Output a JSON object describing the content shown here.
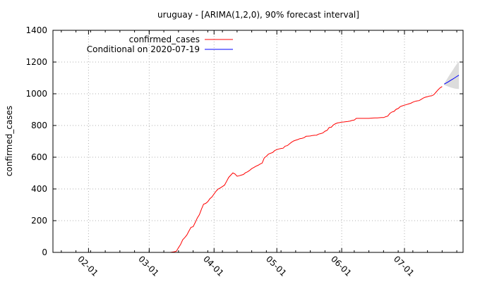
{
  "chart_data": {
    "type": "line",
    "title": "uruguay -  [ARIMA(1,2,0), 90% forecast interval]",
    "xlabel": "",
    "ylabel": "confirmed_cases",
    "ylim": [
      0,
      1400
    ],
    "yticks": [
      0,
      200,
      400,
      600,
      800,
      1000,
      1200,
      1400
    ],
    "xlim": [
      "2020-01-15",
      "2020-07-29"
    ],
    "xticks": [
      {
        "date": "2020-02-01",
        "label": "02-01"
      },
      {
        "date": "2020-03-01",
        "label": "03-01"
      },
      {
        "date": "2020-04-01",
        "label": "04-01"
      },
      {
        "date": "2020-05-01",
        "label": "05-01"
      },
      {
        "date": "2020-06-01",
        "label": "06-01"
      },
      {
        "date": "2020-07-01",
        "label": "07-01"
      }
    ],
    "grid": true,
    "legend_position": "top-left",
    "series": [
      {
        "name": "confirmed_cases",
        "color": "#ff0000",
        "points": [
          [
            "2020-03-11",
            0
          ],
          [
            "2020-03-13",
            4
          ],
          [
            "2020-03-14",
            8
          ],
          [
            "2020-03-15",
            30
          ],
          [
            "2020-03-16",
            50
          ],
          [
            "2020-03-17",
            79
          ],
          [
            "2020-03-18",
            94
          ],
          [
            "2020-03-19",
            110
          ],
          [
            "2020-03-20",
            135
          ],
          [
            "2020-03-21",
            158
          ],
          [
            "2020-03-22",
            162
          ],
          [
            "2020-03-23",
            189
          ],
          [
            "2020-03-24",
            217
          ],
          [
            "2020-03-25",
            238
          ],
          [
            "2020-03-26",
            274
          ],
          [
            "2020-03-27",
            304
          ],
          [
            "2020-03-28",
            309
          ],
          [
            "2020-03-29",
            320
          ],
          [
            "2020-03-30",
            338
          ],
          [
            "2020-03-31",
            350
          ],
          [
            "2020-04-01",
            369
          ],
          [
            "2020-04-02",
            386
          ],
          [
            "2020-04-03",
            400
          ],
          [
            "2020-04-04",
            406
          ],
          [
            "2020-04-05",
            415
          ],
          [
            "2020-04-06",
            424
          ],
          [
            "2020-04-07",
            448
          ],
          [
            "2020-04-08",
            473
          ],
          [
            "2020-04-09",
            487
          ],
          [
            "2020-04-10",
            501
          ],
          [
            "2020-04-11",
            494
          ],
          [
            "2020-04-12",
            480
          ],
          [
            "2020-04-13",
            483
          ],
          [
            "2020-04-14",
            487
          ],
          [
            "2020-04-15",
            491
          ],
          [
            "2020-04-16",
            502
          ],
          [
            "2020-04-17",
            508
          ],
          [
            "2020-04-18",
            517
          ],
          [
            "2020-04-19",
            528
          ],
          [
            "2020-04-20",
            535
          ],
          [
            "2020-04-21",
            543
          ],
          [
            "2020-04-22",
            549
          ],
          [
            "2020-04-23",
            557
          ],
          [
            "2020-04-24",
            563
          ],
          [
            "2020-04-25",
            596
          ],
          [
            "2020-04-26",
            606
          ],
          [
            "2020-04-27",
            620
          ],
          [
            "2020-04-28",
            625
          ],
          [
            "2020-04-29",
            630
          ],
          [
            "2020-04-30",
            642
          ],
          [
            "2020-05-01",
            648
          ],
          [
            "2020-05-02",
            652
          ],
          [
            "2020-05-03",
            655
          ],
          [
            "2020-05-04",
            657
          ],
          [
            "2020-05-05",
            670
          ],
          [
            "2020-05-06",
            673
          ],
          [
            "2020-05-07",
            684
          ],
          [
            "2020-05-08",
            694
          ],
          [
            "2020-05-09",
            702
          ],
          [
            "2020-05-10",
            707
          ],
          [
            "2020-05-11",
            711
          ],
          [
            "2020-05-12",
            717
          ],
          [
            "2020-05-13",
            719
          ],
          [
            "2020-05-14",
            723
          ],
          [
            "2020-05-15",
            732
          ],
          [
            "2020-05-16",
            733
          ],
          [
            "2020-05-17",
            734
          ],
          [
            "2020-05-18",
            737
          ],
          [
            "2020-05-19",
            738
          ],
          [
            "2020-05-20",
            739
          ],
          [
            "2020-05-21",
            746
          ],
          [
            "2020-05-22",
            749
          ],
          [
            "2020-05-23",
            753
          ],
          [
            "2020-05-24",
            764
          ],
          [
            "2020-05-25",
            769
          ],
          [
            "2020-05-26",
            787
          ],
          [
            "2020-05-27",
            789
          ],
          [
            "2020-05-28",
            803
          ],
          [
            "2020-05-29",
            811
          ],
          [
            "2020-05-30",
            816
          ],
          [
            "2020-05-31",
            818
          ],
          [
            "2020-06-01",
            821
          ],
          [
            "2020-06-02",
            822
          ],
          [
            "2020-06-03",
            824
          ],
          [
            "2020-06-04",
            826
          ],
          [
            "2020-06-05",
            828
          ],
          [
            "2020-06-06",
            832
          ],
          [
            "2020-06-07",
            834
          ],
          [
            "2020-06-08",
            845
          ],
          [
            "2020-06-09",
            845
          ],
          [
            "2020-06-10",
            845
          ],
          [
            "2020-06-11",
            845
          ],
          [
            "2020-06-12",
            845
          ],
          [
            "2020-06-13",
            845
          ],
          [
            "2020-06-14",
            845
          ],
          [
            "2020-06-15",
            846
          ],
          [
            "2020-06-16",
            847
          ],
          [
            "2020-06-17",
            848
          ],
          [
            "2020-06-18",
            848
          ],
          [
            "2020-06-19",
            849
          ],
          [
            "2020-06-20",
            850
          ],
          [
            "2020-06-21",
            850
          ],
          [
            "2020-06-22",
            855
          ],
          [
            "2020-06-23",
            859
          ],
          [
            "2020-06-24",
            876
          ],
          [
            "2020-06-25",
            885
          ],
          [
            "2020-06-26",
            889
          ],
          [
            "2020-06-27",
            902
          ],
          [
            "2020-06-28",
            907
          ],
          [
            "2020-06-29",
            919
          ],
          [
            "2020-06-30",
            924
          ],
          [
            "2020-07-01",
            928
          ],
          [
            "2020-07-02",
            932
          ],
          [
            "2020-07-03",
            936
          ],
          [
            "2020-07-04",
            940
          ],
          [
            "2020-07-05",
            947
          ],
          [
            "2020-07-06",
            952
          ],
          [
            "2020-07-07",
            955
          ],
          [
            "2020-07-08",
            957
          ],
          [
            "2020-07-09",
            965
          ],
          [
            "2020-07-10",
            973
          ],
          [
            "2020-07-11",
            978
          ],
          [
            "2020-07-12",
            982
          ],
          [
            "2020-07-13",
            986
          ],
          [
            "2020-07-14",
            987
          ],
          [
            "2020-07-15",
            994
          ],
          [
            "2020-07-16",
            1009
          ],
          [
            "2020-07-17",
            1024
          ],
          [
            "2020-07-18",
            1037
          ],
          [
            "2020-07-19",
            1046
          ]
        ]
      },
      {
        "name": "Conditional on 2020-07-19",
        "color": "#0000ff",
        "points": [
          [
            "2020-07-20",
            1061
          ],
          [
            "2020-07-21",
            1068
          ],
          [
            "2020-07-22",
            1076
          ],
          [
            "2020-07-23",
            1084
          ],
          [
            "2020-07-24",
            1092
          ],
          [
            "2020-07-25",
            1100
          ],
          [
            "2020-07-26",
            1109
          ],
          [
            "2020-07-27",
            1117
          ]
        ],
        "interval_lower": [
          1056,
          1050,
          1045,
          1040,
          1036,
          1033,
          1031,
          1030
        ],
        "interval_upper": [
          1066,
          1086,
          1107,
          1128,
          1148,
          1168,
          1187,
          1205
        ],
        "interval_color": "#dcdcdc"
      }
    ]
  }
}
